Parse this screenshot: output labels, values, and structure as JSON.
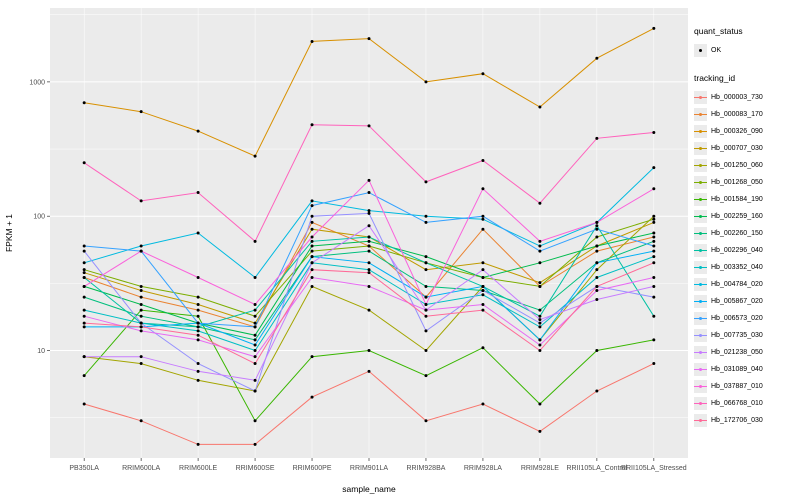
{
  "chart_data": {
    "type": "line",
    "title": "",
    "xlabel": "sample_name",
    "ylabel": "FPKM + 1",
    "y_scale": "log10",
    "y_ticks": [
      10,
      100,
      1000
    ],
    "y_range_log": [
      0.2,
      3.55
    ],
    "grid": true,
    "panel_bg": "#ebebeb",
    "grid_color": "#ffffff",
    "point_color": "#000000",
    "legend_position": "right",
    "categories": [
      "PB350LA",
      "RRIM600LA",
      "RRIM600LE",
      "RRIM600SE",
      "RRIM600PE",
      "RRIM901LA",
      "RRIM928BA",
      "RRIM928LA",
      "RRIM928LE",
      "RRII105LA_Control",
      "RRII105LA_Stressed"
    ],
    "series": [
      {
        "name": "Hb_000003_730",
        "color": "#F8766D",
        "values": [
          4,
          3,
          2,
          2,
          4.5,
          7,
          3,
          4,
          2.5,
          5,
          8
        ]
      },
      {
        "name": "Hb_000083_170",
        "color": "#EA8331",
        "values": [
          35,
          25,
          20,
          15,
          90,
          60,
          25,
          80,
          30,
          55,
          70
        ]
      },
      {
        "name": "Hb_000326_090",
        "color": "#D89000",
        "values": [
          700,
          600,
          430,
          280,
          2000,
          2100,
          1000,
          1150,
          650,
          1500,
          2500
        ]
      },
      {
        "name": "Hb_000707_030",
        "color": "#C09B00",
        "values": [
          38,
          28,
          22,
          16,
          80,
          70,
          40,
          45,
          32,
          60,
          90
        ]
      },
      {
        "name": "Hb_001250_060",
        "color": "#A3A500",
        "values": [
          9,
          8,
          6,
          5,
          30,
          20,
          10,
          30,
          12,
          40,
          100
        ]
      },
      {
        "name": "Hb_001268_050",
        "color": "#7CAE00",
        "values": [
          40,
          30,
          25,
          18,
          55,
          60,
          45,
          35,
          30,
          70,
          95
        ]
      },
      {
        "name": "Hb_001584_190",
        "color": "#39B600",
        "values": [
          6.5,
          20,
          18,
          3,
          9,
          10,
          6.5,
          10.5,
          4,
          10,
          12
        ]
      },
      {
        "name": "Hb_002259_160",
        "color": "#00BB4E",
        "values": [
          30,
          22,
          16,
          13,
          60,
          65,
          50,
          35,
          45,
          60,
          75
        ]
      },
      {
        "name": "Hb_002260_150",
        "color": "#00BF7D",
        "values": [
          25,
          18,
          15,
          12,
          50,
          55,
          30,
          28,
          20,
          45,
          65
        ]
      },
      {
        "name": "Hb_002296_040",
        "color": "#00C1A3",
        "values": [
          35,
          16,
          15,
          20,
          65,
          70,
          45,
          30,
          18,
          85,
          18
        ]
      },
      {
        "name": "Hb_003352_040",
        "color": "#00BFC4",
        "values": [
          20,
          16,
          14,
          10,
          45,
          40,
          22,
          26,
          15,
          35,
          50
        ]
      },
      {
        "name": "Hb_004784_020",
        "color": "#00BAE0",
        "values": [
          45,
          60,
          75,
          35,
          130,
          110,
          100,
          95,
          60,
          90,
          230
        ]
      },
      {
        "name": "Hb_005867_020",
        "color": "#00B0F6",
        "values": [
          15,
          15,
          16,
          11,
          50,
          45,
          25,
          30,
          12,
          45,
          55
        ]
      },
      {
        "name": "Hb_006573_020",
        "color": "#35A2FF",
        "values": [
          60,
          55,
          16,
          15,
          120,
          150,
          90,
          100,
          55,
          80,
          60
        ]
      },
      {
        "name": "Hb_007735_030",
        "color": "#9590FF",
        "values": [
          55,
          16,
          8,
          5,
          100,
          105,
          14,
          28,
          16,
          30,
          25
        ]
      },
      {
        "name": "Hb_021238_050",
        "color": "#C77CFF",
        "values": [
          9,
          9,
          7,
          6,
          45,
          85,
          20,
          40,
          17,
          24,
          30
        ]
      },
      {
        "name": "Hb_031089_040",
        "color": "#E76BF3",
        "values": [
          18,
          14,
          12,
          9,
          35,
          30,
          20,
          22,
          11,
          28,
          35
        ]
      },
      {
        "name": "Hb_037887_010",
        "color": "#FA62DB",
        "values": [
          30,
          55,
          35,
          22,
          70,
          185,
          22,
          160,
          65,
          90,
          160
        ]
      },
      {
        "name": "Hb_066768_010",
        "color": "#FF62BC",
        "values": [
          250,
          130,
          150,
          65,
          480,
          470,
          180,
          260,
          125,
          380,
          420
        ]
      },
      {
        "name": "Hb_172706_030",
        "color": "#FF6A98",
        "values": [
          16,
          15,
          13,
          8,
          40,
          38,
          18,
          20,
          10,
          30,
          45
        ]
      }
    ],
    "legend": {
      "quant_status_title": "quant_status",
      "quant_status_items": [
        {
          "label": "OK"
        }
      ],
      "tracking_title": "tracking_id"
    }
  }
}
